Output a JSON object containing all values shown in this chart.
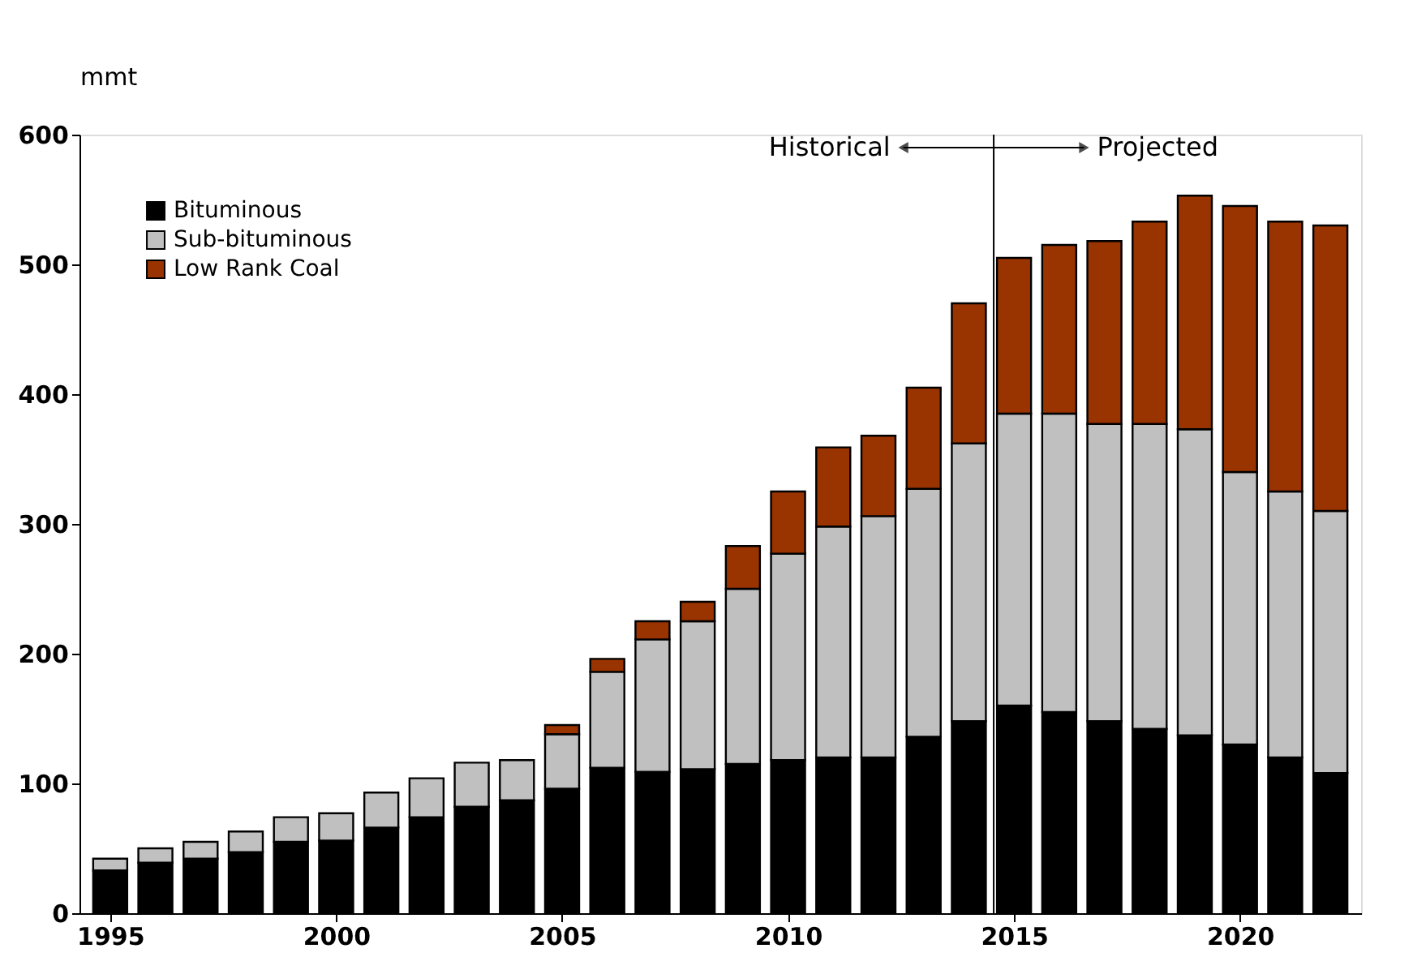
{
  "chart_data": {
    "type": "bar",
    "stacked": true,
    "ylabel": "mmt",
    "x": [
      1995,
      1996,
      1997,
      1998,
      1999,
      2000,
      2001,
      2002,
      2003,
      2004,
      2005,
      2006,
      2007,
      2008,
      2009,
      2010,
      2011,
      2012,
      2013,
      2014,
      2015,
      2016,
      2017,
      2018,
      2019,
      2020,
      2021,
      2022
    ],
    "series": [
      {
        "name": "Bituminous",
        "color": "#000000",
        "values": [
          33,
          39,
          42,
          47,
          55,
          56,
          66,
          74,
          82,
          87,
          96,
          112,
          109,
          111,
          115,
          118,
          120,
          120,
          136,
          148,
          160,
          155,
          148,
          142,
          137,
          130,
          120,
          108
        ]
      },
      {
        "name": "Sub-bituminous",
        "color": "#c0c0c0",
        "values": [
          9,
          11,
          13,
          16,
          19,
          21,
          27,
          30,
          34,
          31,
          42,
          74,
          102,
          114,
          135,
          159,
          178,
          186,
          191,
          214,
          225,
          230,
          229,
          235,
          236,
          210,
          205,
          202
        ]
      },
      {
        "name": "Low Rank Coal",
        "color": "#993300",
        "values": [
          null,
          null,
          null,
          null,
          null,
          null,
          null,
          null,
          null,
          null,
          7,
          10,
          14,
          15,
          33,
          48,
          61,
          62,
          78,
          108,
          120,
          130,
          141,
          156,
          180,
          205,
          208,
          220
        ]
      }
    ],
    "xlim": [
      1994.5,
      2022.5
    ],
    "xticks": [
      1995,
      2000,
      2005,
      2010,
      2015,
      2020
    ],
    "ylim": [
      0,
      600
    ],
    "yticks": [
      0,
      100,
      200,
      300,
      400,
      500,
      600
    ],
    "ref_lines": [
      {
        "axis": "x",
        "value": 2014.55,
        "color": "#000000"
      }
    ],
    "annotations": [
      "Historical",
      "Projected"
    ],
    "grid": false,
    "legend": "top left"
  }
}
